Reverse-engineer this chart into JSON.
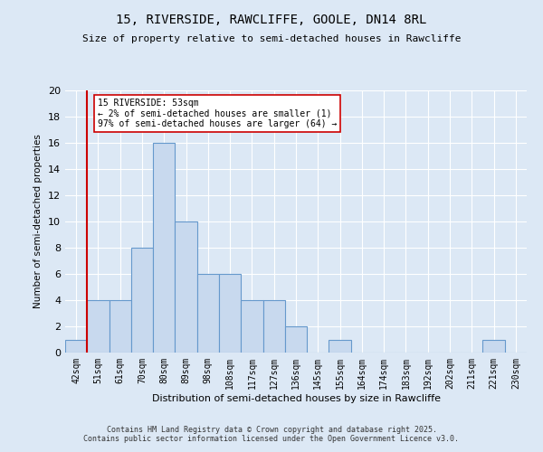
{
  "title1": "15, RIVERSIDE, RAWCLIFFE, GOOLE, DN14 8RL",
  "title2": "Size of property relative to semi-detached houses in Rawcliffe",
  "xlabel": "Distribution of semi-detached houses by size in Rawcliffe",
  "ylabel": "Number of semi-detached properties",
  "footer1": "Contains HM Land Registry data © Crown copyright and database right 2025.",
  "footer2": "Contains public sector information licensed under the Open Government Licence v3.0.",
  "categories": [
    "42sqm",
    "51sqm",
    "61sqm",
    "70sqm",
    "80sqm",
    "89sqm",
    "98sqm",
    "108sqm",
    "117sqm",
    "127sqm",
    "136sqm",
    "145sqm",
    "155sqm",
    "164sqm",
    "174sqm",
    "183sqm",
    "192sqm",
    "202sqm",
    "211sqm",
    "221sqm",
    "230sqm"
  ],
  "values": [
    1,
    4,
    4,
    8,
    16,
    10,
    6,
    6,
    4,
    4,
    2,
    0,
    1,
    0,
    0,
    0,
    0,
    0,
    0,
    1,
    0
  ],
  "bar_color": "#c8d9ee",
  "bar_edge_color": "#6699cc",
  "highlight_color": "#cc0000",
  "ylim": [
    0,
    20
  ],
  "yticks": [
    0,
    2,
    4,
    6,
    8,
    10,
    12,
    14,
    16,
    18,
    20
  ],
  "annotation_text": "15 RIVERSIDE: 53sqm\n← 2% of semi-detached houses are smaller (1)\n97% of semi-detached houses are larger (64) →",
  "annotation_box_color": "#ffffff",
  "annotation_box_edge": "#cc0000",
  "vline_x_index": 1,
  "bg_color": "#dce8f5"
}
